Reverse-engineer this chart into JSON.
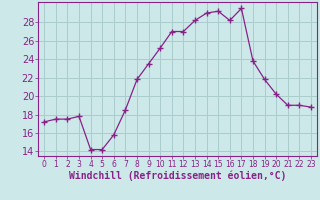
{
  "x": [
    0,
    1,
    2,
    3,
    4,
    5,
    6,
    7,
    8,
    9,
    10,
    11,
    12,
    13,
    14,
    15,
    16,
    17,
    18,
    19,
    20,
    21,
    22,
    23
  ],
  "y": [
    17.2,
    17.5,
    17.5,
    17.8,
    14.2,
    14.2,
    15.8,
    18.5,
    21.8,
    23.5,
    25.2,
    27.0,
    27.0,
    28.2,
    29.0,
    29.2,
    28.2,
    29.5,
    23.8,
    21.8,
    20.2,
    19.0,
    19.0,
    18.8
  ],
  "line_color": "#882288",
  "marker": "+",
  "markersize": 4,
  "linewidth": 0.9,
  "bg_color": "#cce8e8",
  "grid_color": "#aacccc",
  "xlabel": "Windchill (Refroidissement éolien,°C)",
  "xlim": [
    -0.5,
    23.5
  ],
  "ylim": [
    13.5,
    30.2
  ],
  "yticks": [
    14,
    16,
    18,
    20,
    22,
    24,
    26,
    28
  ],
  "xticks": [
    0,
    1,
    2,
    3,
    4,
    5,
    6,
    7,
    8,
    9,
    10,
    11,
    12,
    13,
    14,
    15,
    16,
    17,
    18,
    19,
    20,
    21,
    22,
    23
  ],
  "xlabel_color": "#882288",
  "tick_color": "#882288",
  "spine_color": "#882288",
  "xlabel_fontsize": 7,
  "ytick_fontsize": 7,
  "xtick_fontsize": 5.5
}
